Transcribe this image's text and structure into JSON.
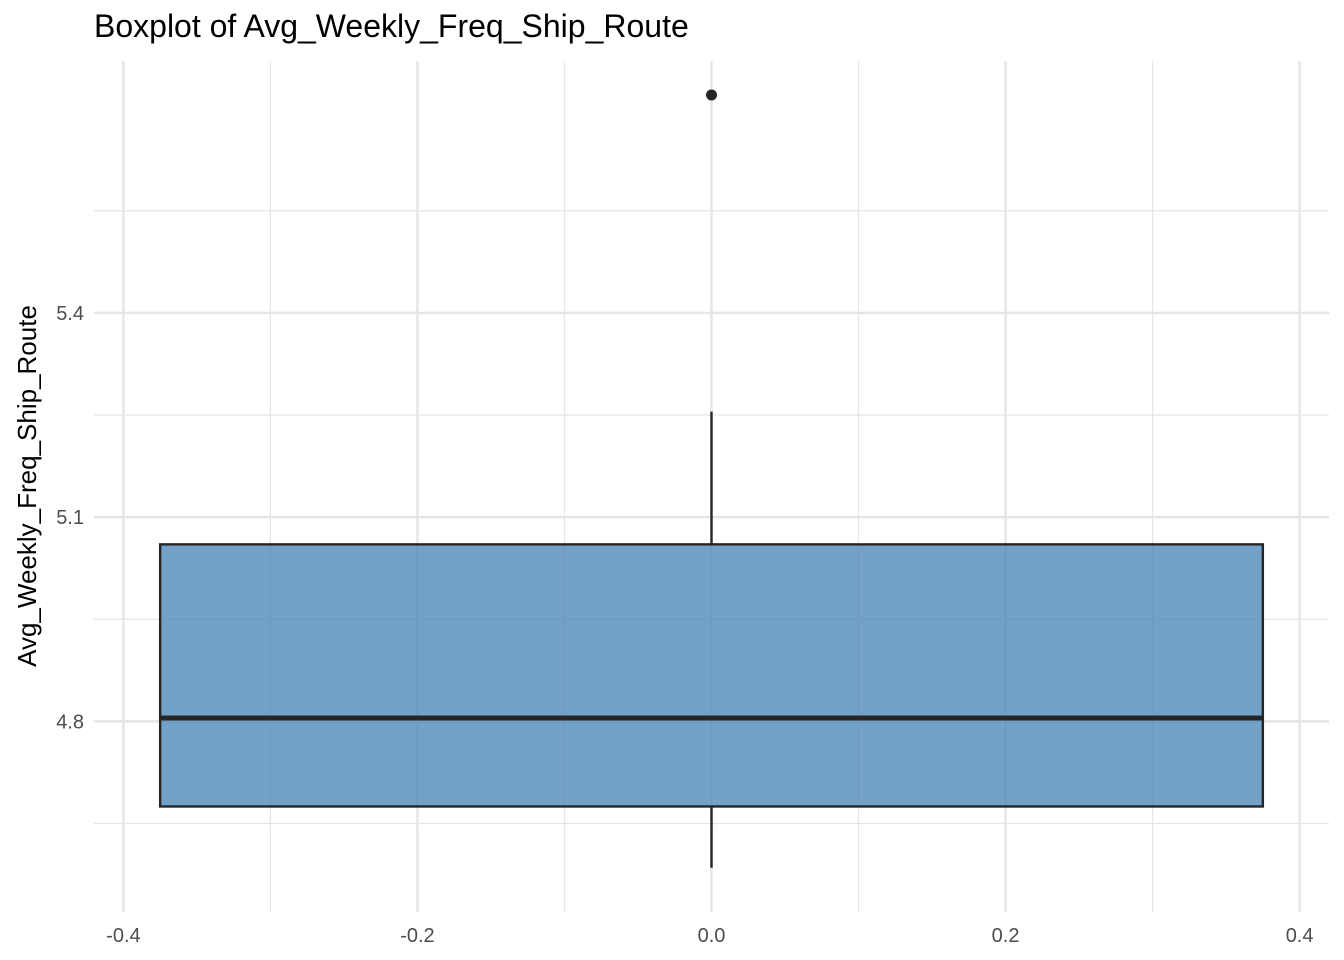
{
  "chart_data": {
    "type": "boxplot",
    "title": "Boxplot of Avg_Weekly_Freq_Ship_Route",
    "xlabel": "",
    "ylabel": "Avg_Weekly_Freq_Ship_Route",
    "xlim": [
      -0.42,
      0.42
    ],
    "ylim": [
      4.52,
      5.77
    ],
    "x_ticks": [
      -0.4,
      -0.2,
      0.0,
      0.2,
      0.4
    ],
    "x_tick_labels": [
      "-0.4",
      "-0.2",
      "0.0",
      "0.2",
      "0.4"
    ],
    "y_ticks": [
      4.8,
      5.1,
      5.4
    ],
    "y_tick_labels": [
      "4.8",
      "5.1",
      "5.4"
    ],
    "y_minor_ticks": [
      4.65,
      4.95,
      5.25,
      5.55
    ],
    "x_minor_ticks": [
      -0.3,
      -0.1,
      0.1,
      0.3
    ],
    "grid": true,
    "box": {
      "x_center": 0.0,
      "x_min": -0.375,
      "x_max": 0.375,
      "q1": 4.675,
      "median": 4.805,
      "q3": 5.06,
      "whisker_low": 4.585,
      "whisker_high": 5.255
    },
    "outliers": [
      5.72
    ],
    "colors": {
      "box_fill": "#4682B4",
      "box_stroke": "#262626",
      "grid": "#e5e5e5"
    }
  }
}
